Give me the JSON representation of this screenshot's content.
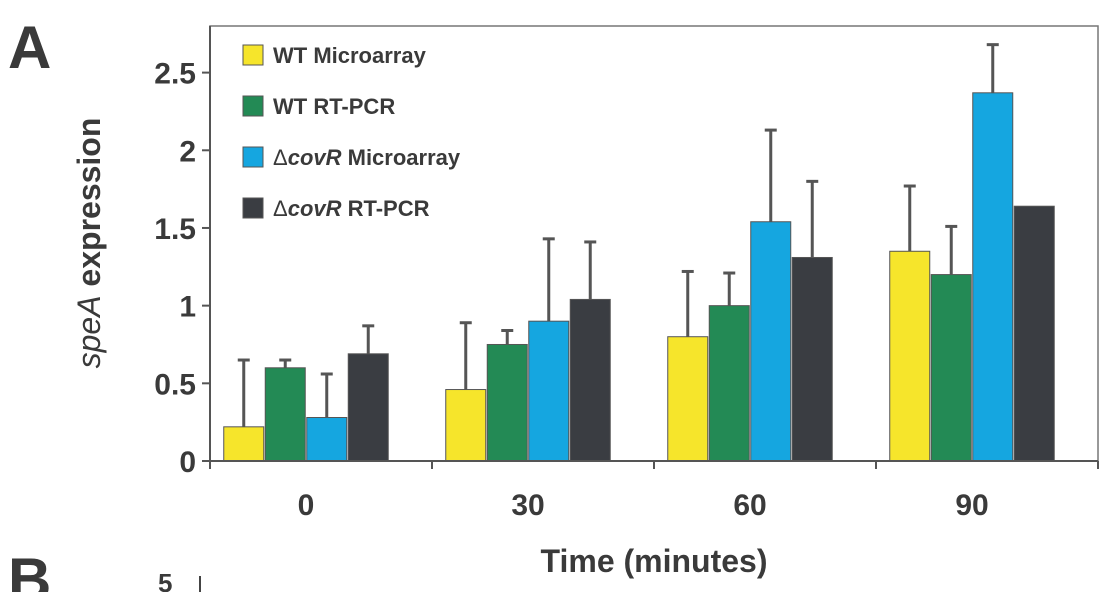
{
  "panels": {
    "a_label": "A",
    "b_label": "B",
    "b_tick": "5"
  },
  "chart_data": {
    "type": "bar",
    "title": "",
    "xlabel": "Time (minutes)",
    "ylabel_italic": "speA",
    "ylabel_rest": " expression",
    "categories": [
      "0",
      "30",
      "60",
      "90"
    ],
    "ylim": [
      0,
      2.8
    ],
    "yticks": [
      0,
      0.5,
      1,
      1.5,
      2,
      2.5
    ],
    "ytick_labels": [
      "0",
      "0.5",
      "1",
      "1.5",
      "2",
      "2.5"
    ],
    "grid": false,
    "legend_position": "top-left",
    "series": [
      {
        "name": "WT Microarray",
        "name_prefix": "",
        "name_italic": "",
        "name_rest": "WT Microarray",
        "color": "#f6e52b",
        "values": [
          0.22,
          0.46,
          0.8,
          1.35
        ],
        "errors": [
          0.43,
          0.43,
          0.42,
          0.42
        ]
      },
      {
        "name": "WT RT-PCR",
        "name_prefix": "",
        "name_italic": "",
        "name_rest": "WT RT-PCR",
        "color": "#238a55",
        "values": [
          0.6,
          0.75,
          1.0,
          1.2
        ],
        "errors": [
          0.05,
          0.09,
          0.21,
          0.31
        ]
      },
      {
        "name": "ΔcovR Microarray",
        "name_prefix": "Δ",
        "name_italic": "covR",
        "name_rest": " Microarray",
        "color": "#15a6e0",
        "values": [
          0.28,
          0.9,
          1.54,
          2.37
        ],
        "errors": [
          0.28,
          0.53,
          0.59,
          0.31
        ]
      },
      {
        "name": "ΔcovR RT-PCR",
        "name_prefix": "Δ",
        "name_italic": "covR",
        "name_rest": " RT-PCR",
        "color": "#3a3d42",
        "values": [
          0.69,
          1.04,
          1.31,
          1.64
        ],
        "errors": [
          0.18,
          0.37,
          0.49,
          0.0
        ]
      }
    ]
  }
}
